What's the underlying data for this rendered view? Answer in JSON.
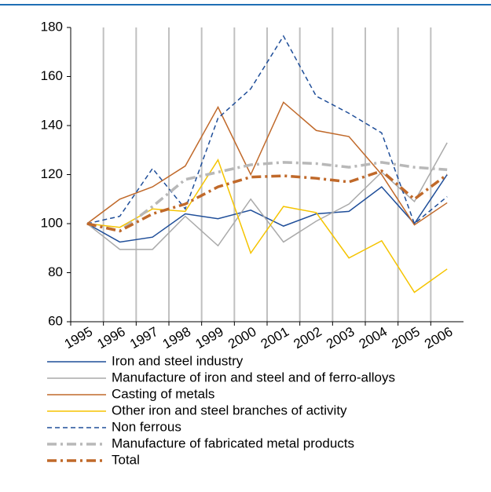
{
  "chart_data": {
    "type": "line",
    "categories": [
      "1995",
      "1996",
      "1997",
      "1998",
      "1999",
      "2000",
      "2001",
      "2002",
      "2003",
      "2004",
      "2005",
      "2006"
    ],
    "ylim": [
      60,
      180
    ],
    "yticks": [
      60,
      80,
      100,
      120,
      140,
      160,
      180
    ],
    "grid": true,
    "series": [
      {
        "name": "Iron and steel industry",
        "color": "#1f4e99",
        "dash": "solid",
        "values": [
          100,
          92.5,
          94.5,
          104,
          102,
          105.5,
          99,
          104,
          105,
          115,
          100,
          120
        ]
      },
      {
        "name": "Manufacture of iron and steel and of ferro-alloys",
        "color": "#aaaaaa",
        "dash": "solid",
        "values": [
          100,
          89.5,
          89.5,
          103,
          91,
          110,
          92.5,
          101,
          108,
          121,
          109,
          133
        ]
      },
      {
        "name": "Casting of metals",
        "color": "#c0692a",
        "dash": "solid",
        "values": [
          100,
          110,
          115,
          123.5,
          147.5,
          120,
          149.5,
          138,
          135.5,
          120,
          99.5,
          108.5
        ]
      },
      {
        "name": "Other iron and steel branches of activity",
        "color": "#f5c400",
        "dash": "solid",
        "values": [
          100,
          98.5,
          106,
          105,
          126,
          88,
          107,
          104.5,
          86,
          93,
          72,
          81.5
        ]
      },
      {
        "name": "Non ferrous",
        "color": "#1f4e99",
        "dash": "dashed",
        "values": [
          100,
          103,
          122.5,
          106,
          143,
          155,
          176.5,
          152,
          145,
          137,
          100,
          111
        ]
      },
      {
        "name": "Manufacture of fabricated metal products",
        "color": "#b8b8b8",
        "dash": "dashdot",
        "values": [
          100,
          97,
          107,
          118,
          121,
          124,
          125,
          124.5,
          123,
          125,
          123,
          122
        ]
      },
      {
        "name": "Total",
        "color": "#c0692a",
        "dash": "dashdot",
        "values": [
          100,
          97,
          104,
          108,
          115,
          119,
          119.5,
          118.5,
          117,
          121.5,
          110,
          120
        ]
      }
    ]
  }
}
